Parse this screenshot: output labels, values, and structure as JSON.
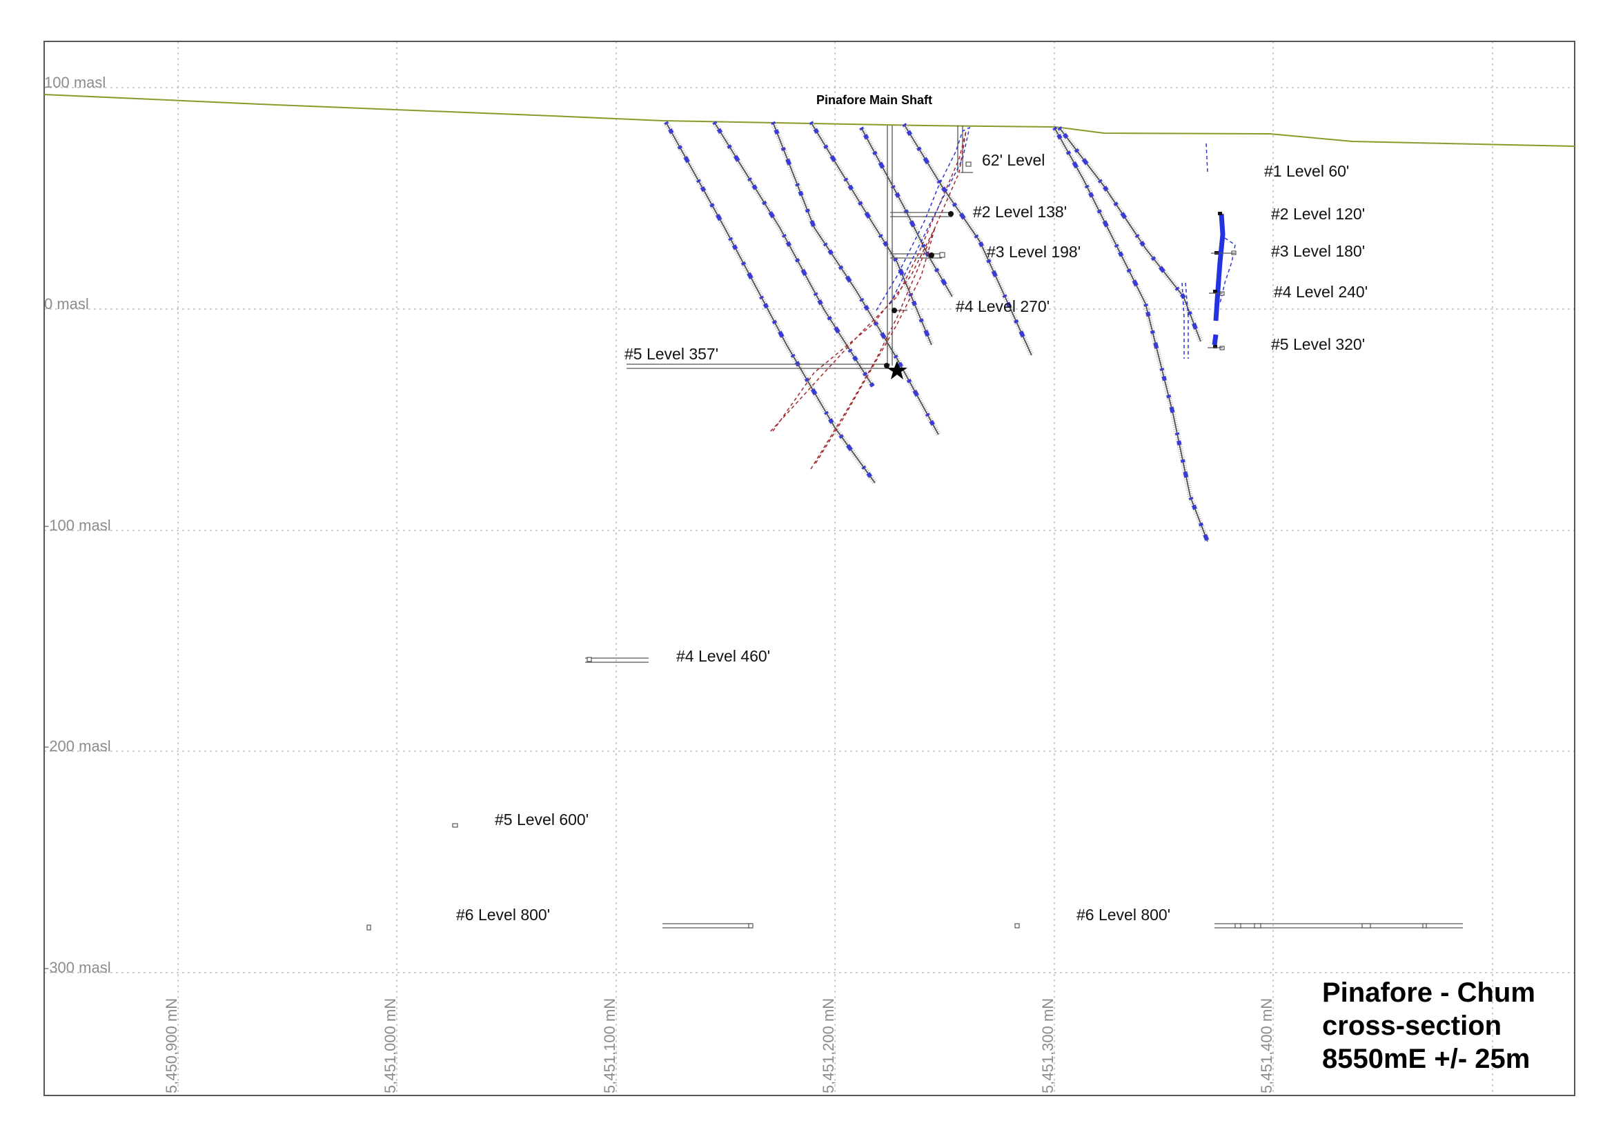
{
  "title_lines": [
    "Pinafore - Chum",
    "cross-section",
    "8550mE +/- 25m"
  ],
  "shaft_label": "Pinafore Main Shaft",
  "elevation_labels": [
    "100 masl",
    "0 masl",
    "-100 masl",
    "-200 masl",
    "-300 masl"
  ],
  "northing_labels": [
    "5,450,900 mN",
    "5,451,000 mN",
    "5,451,100 mN",
    "5,451,200 mN",
    "5,451,300 mN",
    "5,451,400 mN"
  ],
  "level_labels": {
    "pinafore_62": "62' Level",
    "pinafore_138": "#2 Level 138'",
    "pinafore_198": "#3 Level 198'",
    "pinafore_270": "#4 Level 270'",
    "pinafore_357": "#5 Level 357'",
    "pinafore_460": "#4 Level 460'",
    "pinafore_600": "#5 Level 600'",
    "pinafore_800": "#6 Level 800'",
    "chum_60": "#1 Level 60'",
    "chum_120": "#2 Level 120'",
    "chum_180": "#3 Level 180'",
    "chum_240": "#4 Level 240'",
    "chum_320": "#5 Level 320'",
    "chum_800": "#6 Level 800'"
  },
  "colors": {
    "topography": "#8a9a2a",
    "assay_interval": "#3a3ad8",
    "red_wireframe": "#a0282c",
    "blue_wireframe": "#2a35d6",
    "grid": "#bdbdbd"
  }
}
